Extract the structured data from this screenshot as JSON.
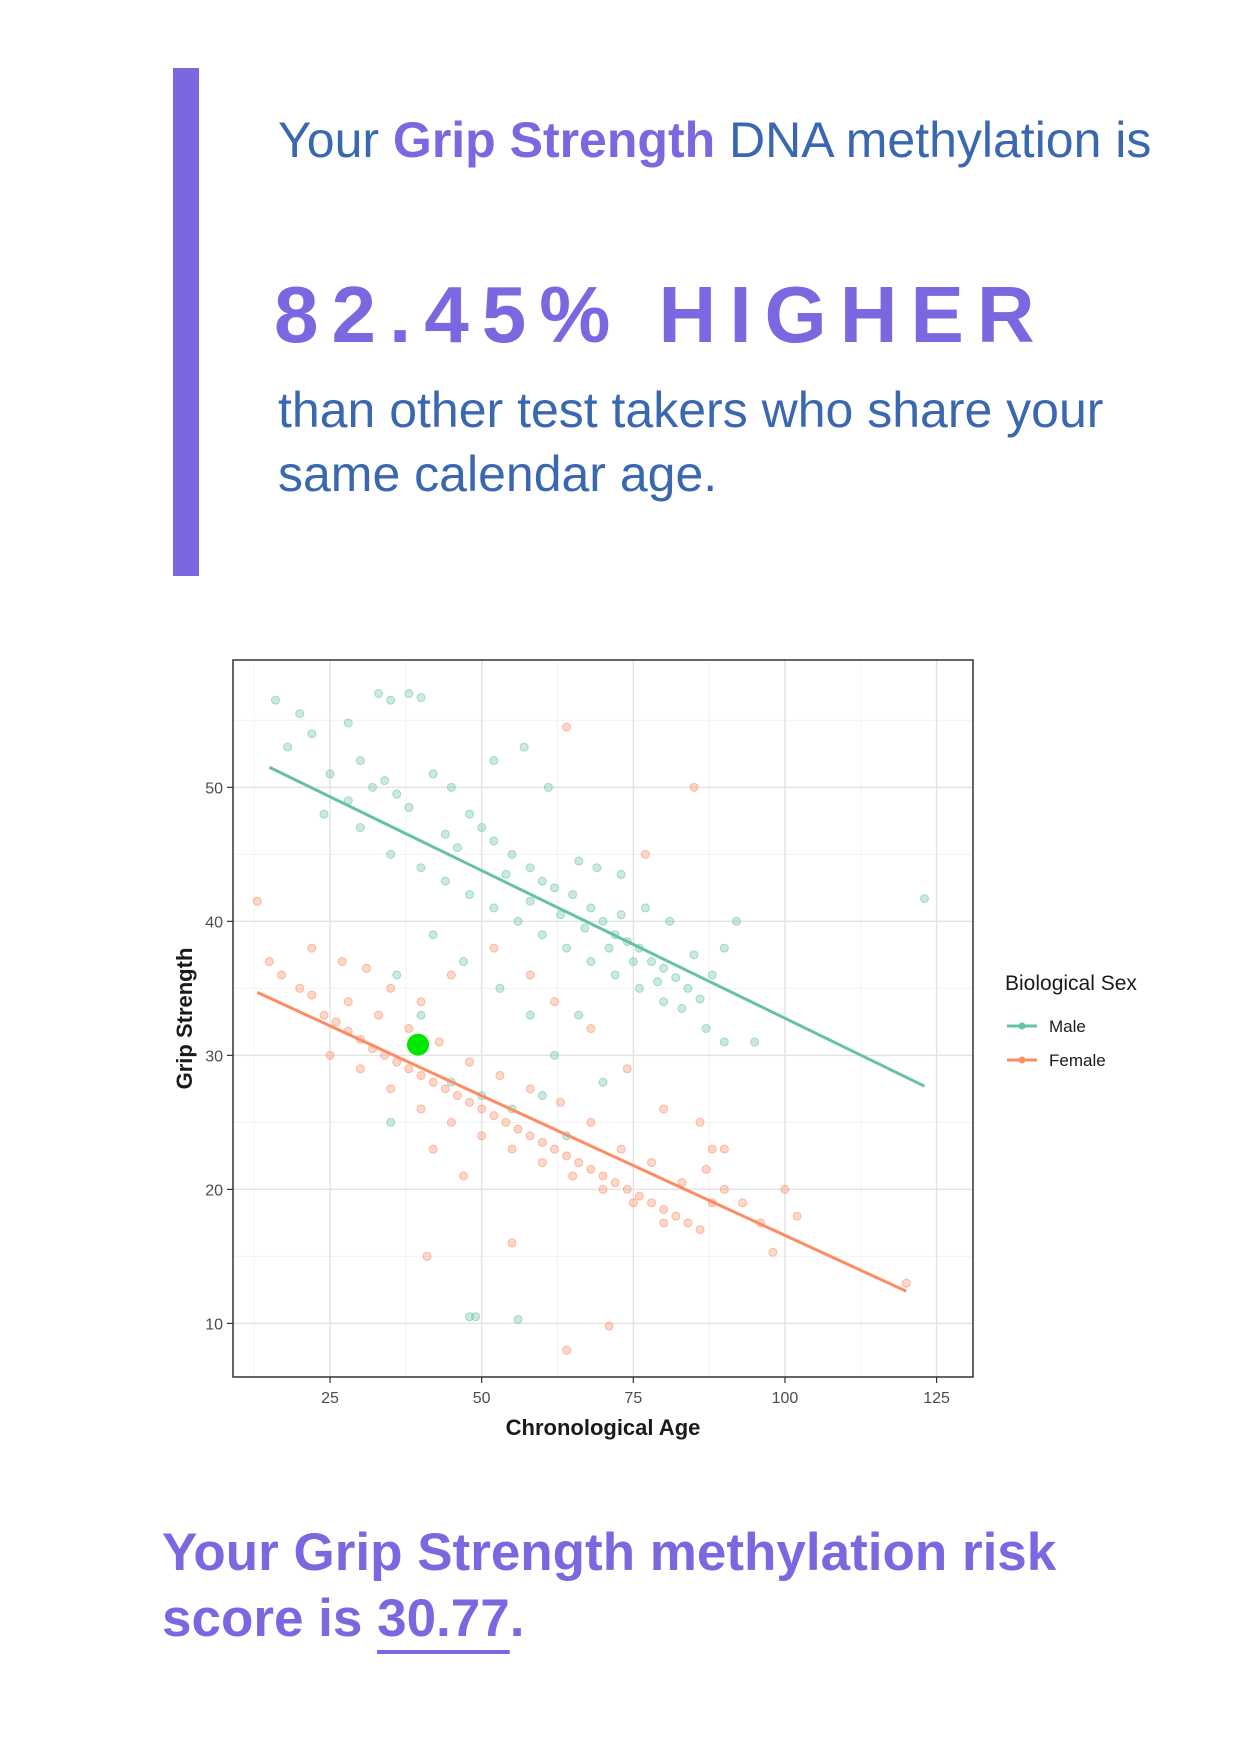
{
  "header": {
    "line1_prefix": "Your ",
    "trait": "Grip Strength",
    "line1_suffix": " DNA methylation is",
    "headline": "82.45% HIGHER",
    "subline": "than other test takers who share your same calendar age."
  },
  "footer": {
    "prefix": "Your Grip Strength methylation risk score is ",
    "score": "30.77",
    "suffix": "."
  },
  "colors": {
    "accent": "#7b68e0",
    "text_blue": "#3a68b0",
    "male": "#66c2a5",
    "female": "#fc8d62",
    "user_point": "#00e600"
  },
  "chart_data": {
    "type": "scatter",
    "xlabel": "Chronological Age",
    "ylabel": "Grip Strength",
    "xlim": [
      9,
      131
    ],
    "ylim": [
      6,
      59.5
    ],
    "x_ticks": [
      25,
      50,
      75,
      100,
      125
    ],
    "y_ticks": [
      10,
      20,
      30,
      40,
      50
    ],
    "grid": true,
    "legend": {
      "title": "Biological Sex",
      "position": "right"
    },
    "series": [
      {
        "name": "Male",
        "color": "#66c2a5",
        "trend": [
          [
            15,
            51.5
          ],
          [
            123,
            27.7
          ]
        ],
        "points": [
          [
            16,
            56.5
          ],
          [
            20,
            55.5
          ],
          [
            33,
            57
          ],
          [
            35,
            56.5
          ],
          [
            38,
            57
          ],
          [
            40,
            56.7
          ],
          [
            18,
            53
          ],
          [
            22,
            54
          ],
          [
            28,
            54.8
          ],
          [
            30,
            52
          ],
          [
            25,
            51
          ],
          [
            32,
            50
          ],
          [
            36,
            49.5
          ],
          [
            42,
            51
          ],
          [
            45,
            50
          ],
          [
            48,
            48
          ],
          [
            50,
            47
          ],
          [
            52,
            46
          ],
          [
            55,
            45
          ],
          [
            58,
            44
          ],
          [
            60,
            43
          ],
          [
            62,
            42.5
          ],
          [
            65,
            42
          ],
          [
            68,
            41
          ],
          [
            70,
            40
          ],
          [
            72,
            39
          ],
          [
            74,
            38.5
          ],
          [
            76,
            38
          ],
          [
            78,
            37
          ],
          [
            80,
            36.5
          ],
          [
            82,
            35.8
          ],
          [
            84,
            35
          ],
          [
            86,
            34.2
          ],
          [
            30,
            47
          ],
          [
            35,
            45
          ],
          [
            40,
            44
          ],
          [
            44,
            43
          ],
          [
            48,
            42
          ],
          [
            52,
            41
          ],
          [
            56,
            40
          ],
          [
            60,
            39
          ],
          [
            64,
            38
          ],
          [
            68,
            37
          ],
          [
            72,
            36
          ],
          [
            76,
            35
          ],
          [
            80,
            34
          ],
          [
            24,
            48
          ],
          [
            28,
            49
          ],
          [
            34,
            50.5
          ],
          [
            38,
            48.5
          ],
          [
            46,
            45.5
          ],
          [
            54,
            43.5
          ],
          [
            58,
            41.5
          ],
          [
            63,
            40.5
          ],
          [
            67,
            39.5
          ],
          [
            71,
            38
          ],
          [
            75,
            37
          ],
          [
            79,
            35.5
          ],
          [
            83,
            33.5
          ],
          [
            87,
            32
          ],
          [
            90,
            31
          ],
          [
            92,
            40
          ],
          [
            95,
            31
          ],
          [
            36,
            36
          ],
          [
            40,
            33
          ],
          [
            45,
            28
          ],
          [
            50,
            27
          ],
          [
            55,
            26
          ],
          [
            60,
            27
          ],
          [
            64,
            24
          ],
          [
            70,
            28
          ],
          [
            48,
            10.5
          ],
          [
            49,
            10.5
          ],
          [
            56,
            10.3
          ],
          [
            52,
            52
          ],
          [
            57,
            53
          ],
          [
            61,
            50
          ],
          [
            69,
            44
          ],
          [
            73,
            43.5
          ],
          [
            77,
            41
          ],
          [
            81,
            40
          ],
          [
            85,
            37.5
          ],
          [
            88,
            36
          ],
          [
            123,
            41.7
          ],
          [
            90,
            38
          ],
          [
            35,
            25
          ],
          [
            62,
            30
          ],
          [
            66,
            33
          ],
          [
            42,
            39
          ],
          [
            47,
            37
          ],
          [
            53,
            35
          ],
          [
            58,
            33
          ],
          [
            44,
            46.5
          ],
          [
            66,
            44.5
          ],
          [
            73,
            40.5
          ]
        ]
      },
      {
        "name": "Female",
        "color": "#fc8d62",
        "trend": [
          [
            13,
            34.7
          ],
          [
            120,
            12.4
          ]
        ],
        "points": [
          [
            13,
            41.5
          ],
          [
            15,
            37
          ],
          [
            17,
            36
          ],
          [
            20,
            35
          ],
          [
            22,
            34.5
          ],
          [
            24,
            33
          ],
          [
            26,
            32.5
          ],
          [
            28,
            31.8
          ],
          [
            30,
            31.2
          ],
          [
            32,
            30.5
          ],
          [
            34,
            30
          ],
          [
            36,
            29.5
          ],
          [
            38,
            29
          ],
          [
            40,
            28.5
          ],
          [
            42,
            28
          ],
          [
            44,
            27.5
          ],
          [
            46,
            27
          ],
          [
            48,
            26.5
          ],
          [
            50,
            26
          ],
          [
            52,
            25.5
          ],
          [
            54,
            25
          ],
          [
            56,
            24.5
          ],
          [
            58,
            24
          ],
          [
            60,
            23.5
          ],
          [
            62,
            23
          ],
          [
            64,
            22.5
          ],
          [
            66,
            22
          ],
          [
            68,
            21.5
          ],
          [
            70,
            21
          ],
          [
            72,
            20.5
          ],
          [
            74,
            20
          ],
          [
            76,
            19.5
          ],
          [
            78,
            19
          ],
          [
            80,
            18.5
          ],
          [
            82,
            18
          ],
          [
            84,
            17.5
          ],
          [
            86,
            17
          ],
          [
            88,
            23
          ],
          [
            25,
            30
          ],
          [
            30,
            29
          ],
          [
            35,
            27.5
          ],
          [
            40,
            26
          ],
          [
            45,
            25
          ],
          [
            50,
            24
          ],
          [
            55,
            23
          ],
          [
            60,
            22
          ],
          [
            65,
            21
          ],
          [
            70,
            20
          ],
          [
            75,
            19
          ],
          [
            80,
            17.5
          ],
          [
            28,
            34
          ],
          [
            33,
            33
          ],
          [
            38,
            32
          ],
          [
            43,
            31
          ],
          [
            48,
            29.5
          ],
          [
            53,
            28.5
          ],
          [
            58,
            27.5
          ],
          [
            63,
            26.5
          ],
          [
            68,
            25
          ],
          [
            73,
            23
          ],
          [
            78,
            22
          ],
          [
            83,
            20.5
          ],
          [
            87,
            21.5
          ],
          [
            22,
            38
          ],
          [
            27,
            37
          ],
          [
            31,
            36.5
          ],
          [
            35,
            35
          ],
          [
            40,
            34
          ],
          [
            42,
            23
          ],
          [
            47,
            21
          ],
          [
            41,
            15
          ],
          [
            88,
            19
          ],
          [
            90,
            20
          ],
          [
            93,
            19
          ],
          [
            96,
            17.5
          ],
          [
            98,
            15.3
          ],
          [
            100,
            20
          ],
          [
            102,
            18
          ],
          [
            64,
            54.5
          ],
          [
            77,
            45
          ],
          [
            85,
            50
          ],
          [
            64,
            8
          ],
          [
            71,
            9.8
          ],
          [
            120,
            13
          ],
          [
            55,
            16
          ],
          [
            45,
            36
          ],
          [
            52,
            38
          ],
          [
            58,
            36
          ],
          [
            62,
            34
          ],
          [
            68,
            32
          ],
          [
            74,
            29
          ],
          [
            80,
            26
          ],
          [
            86,
            25
          ],
          [
            90,
            23
          ]
        ]
      },
      {
        "name": "",
        "color": "#00e600",
        "highlight": true,
        "points": [
          [
            39.5,
            30.8
          ]
        ]
      }
    ]
  }
}
